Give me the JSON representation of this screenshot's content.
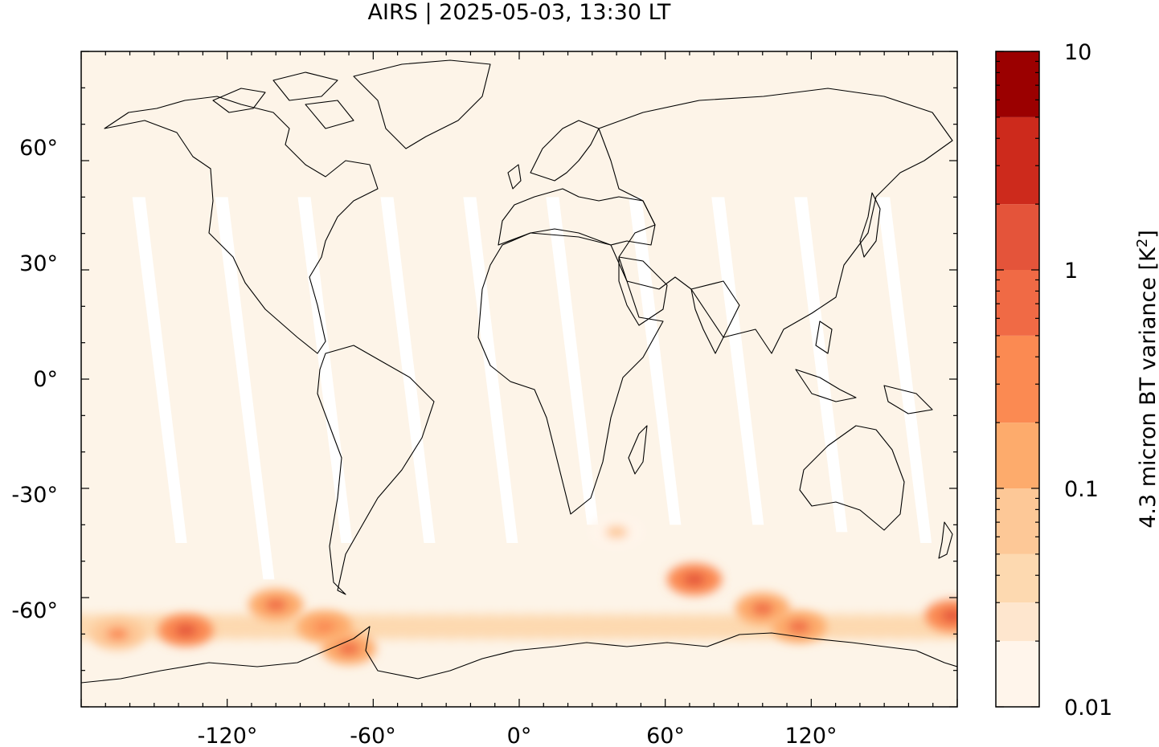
{
  "chart_data": {
    "type": "heatmap",
    "title": "AIRS | 2025-05-03, 13:30 LT",
    "xlabel": "",
    "ylabel": "",
    "xlim": [
      -180,
      180
    ],
    "ylim": [
      -90,
      90
    ],
    "x_ticks": [
      {
        "value": -120,
        "label": "-120°"
      },
      {
        "value": -60,
        "label": "-60°"
      },
      {
        "value": 0,
        "label": "0°"
      },
      {
        "value": 60,
        "label": "60°"
      },
      {
        "value": 120,
        "label": "120°"
      }
    ],
    "y_ticks": [
      {
        "value": 60,
        "label": "60°"
      },
      {
        "value": 30,
        "label": "30°"
      },
      {
        "value": 0,
        "label": "0°"
      },
      {
        "value": -30,
        "label": "-30°"
      },
      {
        "value": -60,
        "label": "-60°"
      }
    ],
    "colorbar": {
      "label": "4.3 micron BT variance [K",
      "label_sup": "2",
      "label_end": "]",
      "scale": "log",
      "range": [
        0.01,
        10
      ],
      "ticks": [
        {
          "value": 0.01,
          "label": "0.01"
        },
        {
          "value": 0.1,
          "label": "0.1"
        },
        {
          "value": 1,
          "label": "1"
        },
        {
          "value": 10,
          "label": "10"
        }
      ],
      "levels": [
        {
          "from": 0.01,
          "to": 0.02,
          "color": "#fff5eb"
        },
        {
          "from": 0.02,
          "to": 0.03,
          "color": "#fee6ce"
        },
        {
          "from": 0.03,
          "to": 0.05,
          "color": "#fdd9b0"
        },
        {
          "from": 0.05,
          "to": 0.1,
          "color": "#fdc897"
        },
        {
          "from": 0.1,
          "to": 0.2,
          "color": "#fdab6c"
        },
        {
          "from": 0.2,
          "to": 0.5,
          "color": "#fb8a52"
        },
        {
          "from": 0.5,
          "to": 1,
          "color": "#f06a45"
        },
        {
          "from": 1,
          "to": 2,
          "color": "#e4543a"
        },
        {
          "from": 2,
          "to": 5,
          "color": "#cd2a1c"
        },
        {
          "from": 5,
          "to": 10,
          "color": "#9b0000"
        }
      ]
    },
    "background_color": "#fdf4e8",
    "swath_gaps": [
      {
        "lon": -157,
        "lat_from": 50,
        "lat_to": -45
      },
      {
        "lon": -123,
        "lat_from": 50,
        "lat_to": -55
      },
      {
        "lon": -89,
        "lat_from": 50,
        "lat_to": -45
      },
      {
        "lon": -55,
        "lat_from": 50,
        "lat_to": -45
      },
      {
        "lon": -21,
        "lat_from": 50,
        "lat_to": -45
      },
      {
        "lon": 13,
        "lat_from": 50,
        "lat_to": -40
      },
      {
        "lon": 47,
        "lat_from": 50,
        "lat_to": -40
      },
      {
        "lon": 81,
        "lat_from": 50,
        "lat_to": -40
      },
      {
        "lon": 115,
        "lat_from": 50,
        "lat_to": -42
      },
      {
        "lon": 149,
        "lat_from": 50,
        "lat_to": -45
      }
    ],
    "hotspots": [
      {
        "lon": -137,
        "lat": -69,
        "value": 1.2
      },
      {
        "lon": -100,
        "lat": -62,
        "value": 0.5
      },
      {
        "lon": -80,
        "lat": -68,
        "value": 0.4
      },
      {
        "lon": -70,
        "lat": -74,
        "value": 0.6
      },
      {
        "lon": 40,
        "lat": -42,
        "value": 0.06
      },
      {
        "lon": 72,
        "lat": -55,
        "value": 1.0
      },
      {
        "lon": 100,
        "lat": -63,
        "value": 0.7
      },
      {
        "lon": 115,
        "lat": -68,
        "value": 0.5
      },
      {
        "lon": 178,
        "lat": -65,
        "value": 1.5
      },
      {
        "lon": -165,
        "lat": -70,
        "value": 0.2
      }
    ]
  }
}
